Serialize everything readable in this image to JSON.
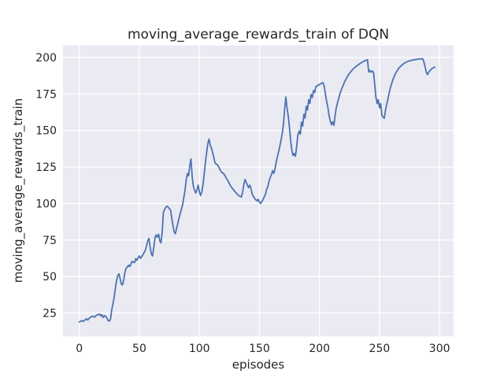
{
  "style": {
    "figure_bg": "#ffffff",
    "axes_bg": "#eaeaf2",
    "grid_color": "#ffffff",
    "line_color": "#4c72b0",
    "text_color": "#262626"
  },
  "chart_data": {
    "type": "line",
    "title": "moving_average_rewards_train of DQN",
    "xlabel": "episodes",
    "ylabel": "moving_average_rewards_train",
    "legend": "none",
    "grid": true,
    "x_ticks": [
      0,
      50,
      100,
      150,
      200,
      250,
      300
    ],
    "y_ticks": [
      25,
      50,
      75,
      100,
      125,
      150,
      175,
      200
    ],
    "xlim": [
      -13.6,
      311.7
    ],
    "ylim": [
      9.0,
      208.3
    ],
    "series": [
      {
        "name": "moving_average_rewards_train",
        "x_start": 0,
        "x_step": 1,
        "values": [
          18.9,
          19.3,
          19.9,
          19.4,
          19.6,
          20.5,
          21.1,
          20.2,
          21.2,
          22,
          22.4,
          22.9,
          22.5,
          22.3,
          23.4,
          23.8,
          24,
          24.3,
          22.9,
          23.8,
          22,
          23.2,
          22.7,
          21.5,
          19.8,
          19.5,
          21,
          27.4,
          31,
          36,
          42,
          47,
          50.5,
          51.8,
          48.5,
          44.8,
          44.3,
          48,
          53,
          55.8,
          56.5,
          57.8,
          56.8,
          58.5,
          60.5,
          59.8,
          59.6,
          62.3,
          61.2,
          62.8,
          64.1,
          62.5,
          63.5,
          65,
          66.5,
          68,
          71,
          74.5,
          76.1,
          70,
          65.5,
          64.1,
          70,
          76.5,
          78.5,
          77,
          79,
          74.5,
          73,
          80,
          93.7,
          96,
          97.3,
          98.2,
          97.5,
          96.4,
          95.5,
          90.1,
          84.7,
          80.5,
          79.3,
          83,
          86.5,
          90,
          93,
          96,
          99.1,
          104,
          109,
          116,
          120.5,
          119,
          126,
          130.6,
          118,
          111.7,
          109,
          107.2,
          109.5,
          112.6,
          108,
          105.5,
          108,
          113,
          120,
          128,
          135,
          141,
          144.1,
          140,
          137.8,
          135,
          131.5,
          127.9,
          127,
          126.5,
          125.2,
          123.5,
          122,
          121,
          120.7,
          119.5,
          118,
          116.5,
          115.3,
          113.5,
          112,
          110.8,
          109.9,
          108.8,
          107.8,
          106.8,
          106,
          105.3,
          104.8,
          104.5,
          108,
          113,
          116.5,
          114.5,
          112.6,
          110.8,
          112.6,
          110,
          106.3,
          104.8,
          103.6,
          102.5,
          101.8,
          103,
          100.9,
          100,
          101.3,
          102.7,
          104.5,
          106.3,
          109.9,
          111.4,
          115.3,
          118,
          119.8,
          122.5,
          120.7,
          124,
          128.5,
          132,
          135.5,
          139.5,
          143.5,
          148,
          154,
          165,
          172.9,
          165.6,
          160,
          152,
          143,
          136.5,
          132.8,
          134.2,
          132.4,
          139,
          146.8,
          149.5,
          147.5,
          155.8,
          153,
          161.2,
          158.5,
          166.6,
          164,
          171.1,
          168.5,
          174.7,
          172.5,
          177.4,
          176,
          180.1,
          180.5,
          181,
          181.5,
          182,
          182.4,
          182.7,
          180,
          174.6,
          170,
          165.6,
          160.2,
          156.5,
          154,
          156,
          153.5,
          160,
          165.6,
          169,
          172,
          175,
          177.5,
          179.5,
          181.5,
          183.5,
          185,
          186.5,
          188,
          189.2,
          190.2,
          191.2,
          192,
          192.8,
          193.5,
          194.2,
          194.8,
          195.4,
          196,
          196.5,
          197,
          197.4,
          197.9,
          198.2,
          198.4,
          190,
          191.2,
          189.9,
          190.8,
          189.9,
          181.8,
          172.9,
          168.4,
          171.1,
          165.6,
          168.4,
          160.2,
          159,
          158.4,
          164,
          168,
          171.5,
          175.5,
          179,
          182,
          184.5,
          186.5,
          188.5,
          190,
          191.3,
          192.6,
          193.5,
          194.3,
          195,
          195.7,
          196.2,
          196.7,
          197.1,
          197.4,
          197.7,
          197.9,
          198.1,
          198.3,
          198.5,
          198.6,
          198.7,
          198.8,
          198.9,
          199,
          199.1,
          199.1,
          196.9,
          193.4,
          189.7,
          188.3,
          190,
          191,
          192,
          192.5,
          193,
          193.4
        ]
      }
    ]
  }
}
